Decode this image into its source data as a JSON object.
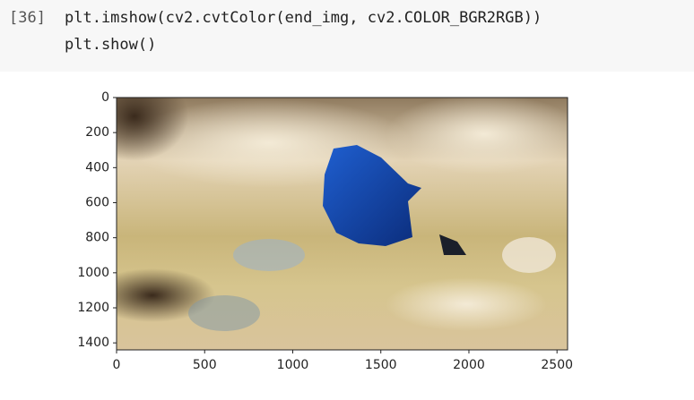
{
  "cell": {
    "prompt": "[36]",
    "code": [
      "plt.imshow(cv2.cvtColor(end_img, cv2.COLOR_BGR2RGB))",
      "plt.show()"
    ]
  },
  "chart_data": {
    "type": "image",
    "xlim": [
      0,
      2560
    ],
    "ylim": [
      1440,
      0
    ],
    "xticks": [
      0,
      500,
      1000,
      1500,
      2000,
      2500
    ],
    "yticks": [
      0,
      200,
      400,
      600,
      800,
      1000,
      1200,
      1400
    ]
  }
}
